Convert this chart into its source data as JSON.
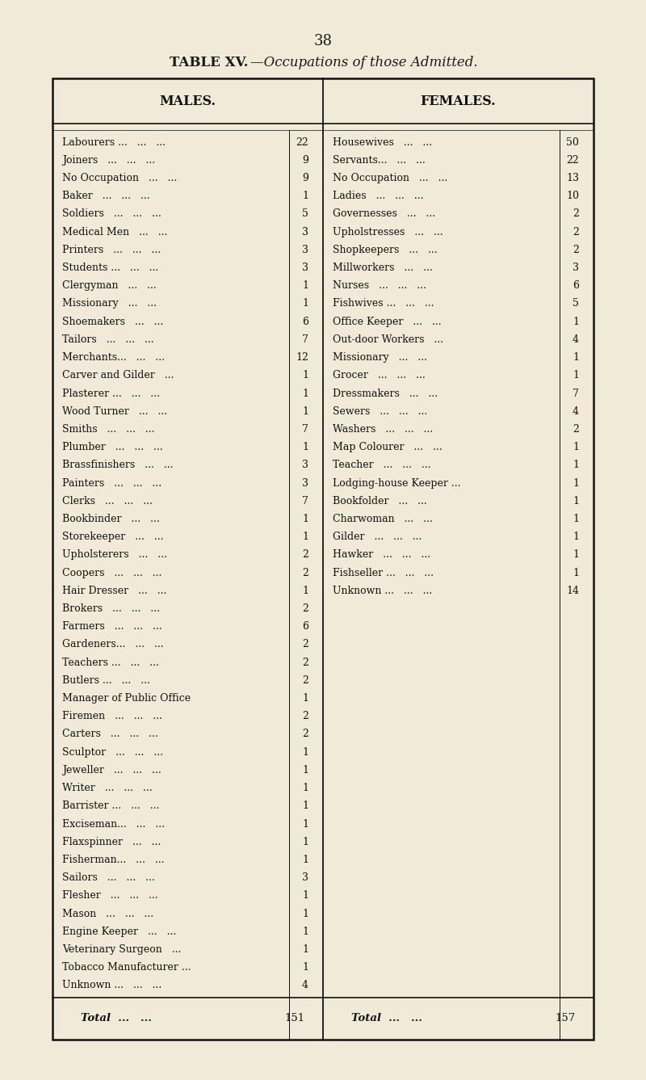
{
  "page_number": "38",
  "title_normal": "TABLE XV.",
  "title_italic": "—Occupations of those Admitted.",
  "bg_color": "#f2ead8",
  "males": [
    [
      "Labourers ...   ...   ...",
      "22"
    ],
    [
      "Joiners   ...   ...   ...",
      "9"
    ],
    [
      "No Occupation   ...   ...",
      "9"
    ],
    [
      "Baker   ...   ...   ...",
      "1"
    ],
    [
      "Soldiers   ...   ...   ...",
      "5"
    ],
    [
      "Medical Men   ...   ...",
      "3"
    ],
    [
      "Printers   ...   ...   ...",
      "3"
    ],
    [
      "Students ...   ...   ...",
      "3"
    ],
    [
      "Clergyman   ...   ...",
      "1"
    ],
    [
      "Missionary   ...   ...",
      "1"
    ],
    [
      "Shoemakers   ...   ...",
      "6"
    ],
    [
      "Tailors   ...   ...   ...",
      "7"
    ],
    [
      "Merchants...   ...   ...",
      "12"
    ],
    [
      "Carver and Gilder   ...",
      "1"
    ],
    [
      "Plasterer ...   ...   ...",
      "1"
    ],
    [
      "Wood Turner   ...   ...",
      "1"
    ],
    [
      "Smiths   ...   ...   ...",
      "7"
    ],
    [
      "Plumber   ...   ...   ...",
      "1"
    ],
    [
      "Brassfinishers   ...   ...",
      "3"
    ],
    [
      "Painters   ...   ...   ...",
      "3"
    ],
    [
      "Clerks   ...   ...   ...",
      "7"
    ],
    [
      "Bookbinder   ...   ...",
      "1"
    ],
    [
      "Storekeeper   ...   ...",
      "1"
    ],
    [
      "Upholsterers   ...   ...",
      "2"
    ],
    [
      "Coopers   ...   ...   ...",
      "2"
    ],
    [
      "Hair Dresser   ...   ...",
      "1"
    ],
    [
      "Brokers   ...   ...   ...",
      "2"
    ],
    [
      "Farmers   ...   ...   ...",
      "6"
    ],
    [
      "Gardeners...   ...   ...",
      "2"
    ],
    [
      "Teachers ...   ...   ...",
      "2"
    ],
    [
      "Butlers ...   ...   ...",
      "2"
    ],
    [
      "Manager of Public Office",
      "1"
    ],
    [
      "Firemen   ...   ...   ...",
      "2"
    ],
    [
      "Carters   ...   ...   ...",
      "2"
    ],
    [
      "Sculptor   ...   ...   ...",
      "1"
    ],
    [
      "Jeweller   ...   ...   ...",
      "1"
    ],
    [
      "Writer   ...   ...   ...",
      "1"
    ],
    [
      "Barrister ...   ...   ...",
      "1"
    ],
    [
      "Exciseman...   ...   ...",
      "1"
    ],
    [
      "Flaxspinner   ...   ...",
      "1"
    ],
    [
      "Fisherman...   ...   ...",
      "1"
    ],
    [
      "Sailors   ...   ...   ...",
      "3"
    ],
    [
      "Flesher   ...   ...   ...",
      "1"
    ],
    [
      "Mason   ...   ...   ...",
      "1"
    ],
    [
      "Engine Keeper   ...   ...",
      "1"
    ],
    [
      "Veterinary Surgeon   ...",
      "1"
    ],
    [
      "Tobacco Manufacturer ...",
      "1"
    ],
    [
      "Unknown ...   ...   ...",
      "4"
    ]
  ],
  "males_total": "151",
  "females": [
    [
      "Housewives   ...   ...",
      "50"
    ],
    [
      "Servants...   ...   ...",
      "22"
    ],
    [
      "No Occupation   ...   ...",
      "13"
    ],
    [
      "Ladies   ...   ...   ...",
      "10"
    ],
    [
      "Governesses   ...   ...",
      "2"
    ],
    [
      "Upholstresses   ...   ...",
      "2"
    ],
    [
      "Shopkeepers   ...   ...",
      "2"
    ],
    [
      "Millworkers   ...   ...",
      "3"
    ],
    [
      "Nurses   ...   ...   ...",
      "6"
    ],
    [
      "Fishwives ...   ...   ...",
      "5"
    ],
    [
      "Office Keeper   ...   ...",
      "1"
    ],
    [
      "Out-door Workers   ...",
      "4"
    ],
    [
      "Missionary   ...   ...",
      "1"
    ],
    [
      "Grocer   ...   ...   ...",
      "1"
    ],
    [
      "Dressmakers   ...   ...",
      "7"
    ],
    [
      "Sewers   ...   ...   ...",
      "4"
    ],
    [
      "Washers   ...   ...   ...",
      "2"
    ],
    [
      "Map Colourer   ...   ...",
      "1"
    ],
    [
      "Teacher   ...   ...   ...",
      "1"
    ],
    [
      "Lodging-house Keeper ...",
      "1"
    ],
    [
      "Bookfolder   ...   ...",
      "1"
    ],
    [
      "Charwoman   ...   ...",
      "1"
    ],
    [
      "Gilder   ...   ...   ...",
      "1"
    ],
    [
      "Hawker   ...   ...   ...",
      "1"
    ],
    [
      "Fishseller ...   ...   ...",
      "1"
    ],
    [
      "Unknown ...   ...   ...",
      "14"
    ]
  ],
  "females_total": "157",
  "font_size_data": 9.0,
  "font_size_header": 11.5,
  "font_size_title": 12.0,
  "font_size_total": 9.5
}
